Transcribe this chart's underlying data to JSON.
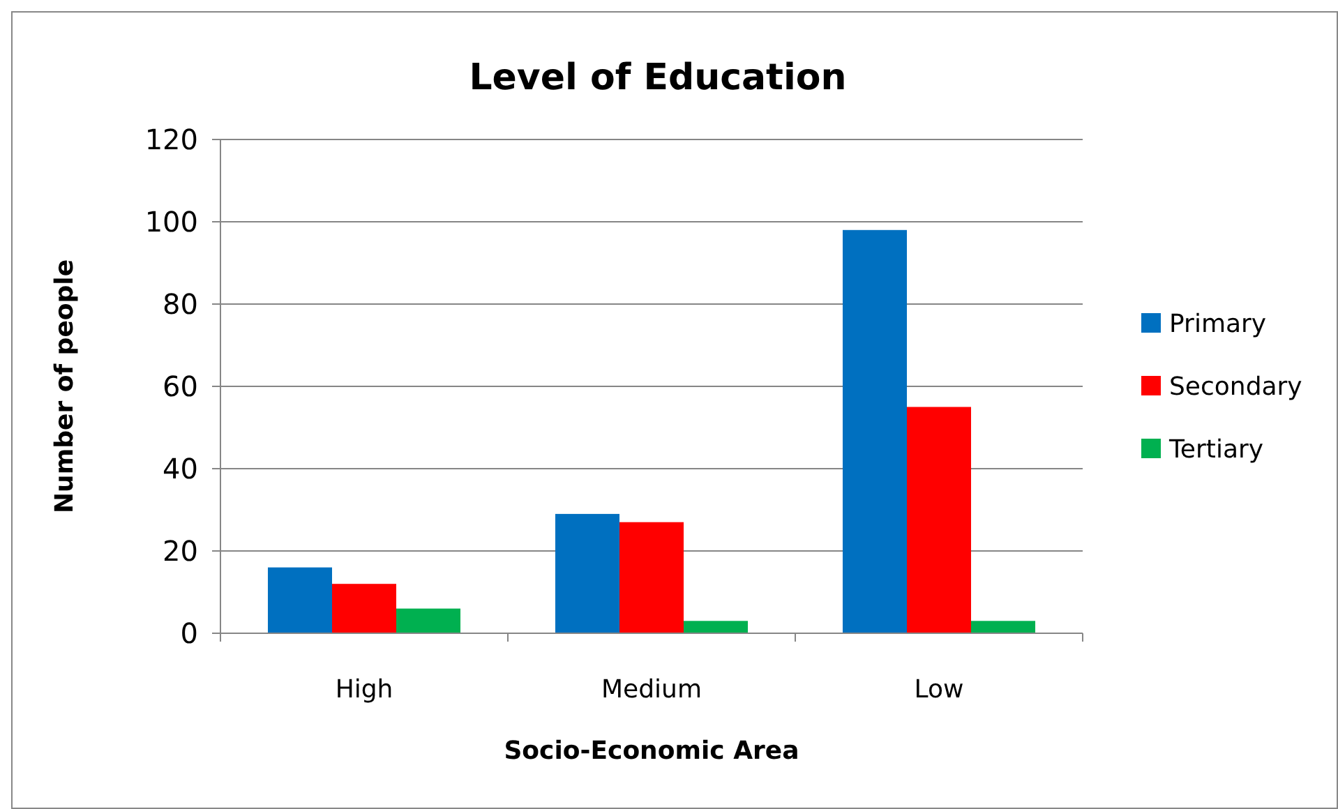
{
  "chart_data": {
    "type": "bar",
    "title": "Level of Education",
    "xlabel": "Socio-Economic Area",
    "ylabel": "Number of people",
    "categories": [
      "High",
      "Medium",
      "Low"
    ],
    "series": [
      {
        "name": "Primary",
        "color": "#0070c0",
        "values": [
          16,
          29,
          98
        ]
      },
      {
        "name": "Secondary",
        "color": "#ff0000",
        "values": [
          12,
          27,
          55
        ]
      },
      {
        "name": "Tertiary",
        "color": "#00b050",
        "values": [
          6,
          3,
          3
        ]
      }
    ],
    "ylim": [
      0,
      120
    ],
    "yticks": [
      0,
      20,
      40,
      60,
      80,
      100,
      120
    ],
    "grid": "y",
    "legend": "right"
  }
}
